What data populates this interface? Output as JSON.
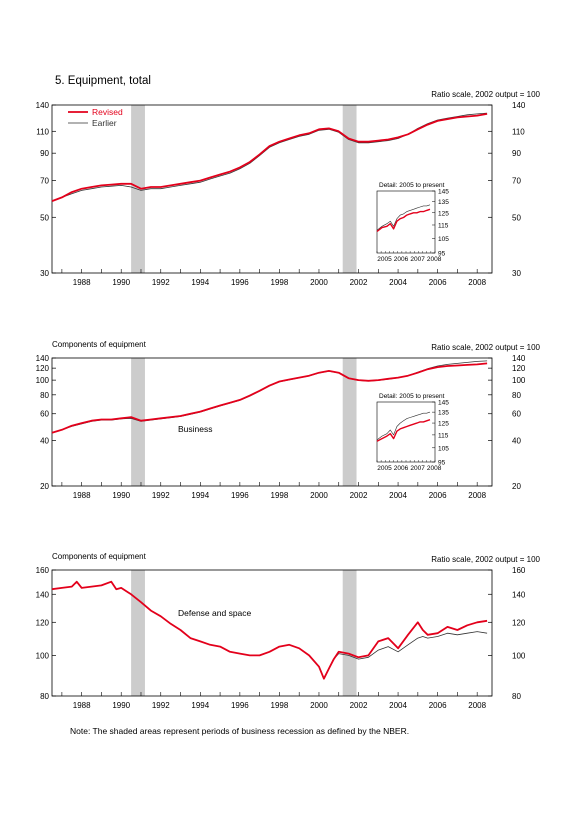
{
  "figure_title": "5. Equipment, total",
  "note": "Note: The shaded areas represent periods of business recession as defined by the NBER.",
  "colors": {
    "revised": "#e3001b",
    "earlier": "#333333",
    "recession": "#cccccc",
    "axis": "#000000"
  },
  "recessions": [
    [
      1990.5,
      1991.2
    ],
    [
      2001.2,
      2001.9
    ]
  ],
  "chart_data": [
    {
      "type": "line",
      "title": "",
      "left_label": "",
      "right_label": "Ratio scale, 2002 output = 100",
      "scale": "log",
      "xlim": [
        1986.5,
        2008.75
      ],
      "ylim": [
        30,
        140
      ],
      "yticks": [
        30,
        50,
        70,
        90,
        110,
        140
      ],
      "xticks": [
        1988,
        1990,
        1992,
        1994,
        1996,
        1998,
        2000,
        2002,
        2004,
        2006,
        2008
      ],
      "legend": {
        "placement": "top-left",
        "entries": [
          "Revised",
          "Earlier"
        ]
      },
      "series": [
        {
          "name": "Revised",
          "style": "revised",
          "x": [
            1986.5,
            1987.0,
            1987.5,
            1988.0,
            1988.5,
            1989.0,
            1989.5,
            1990.0,
            1990.5,
            1991.0,
            1991.5,
            1992.0,
            1992.5,
            1993.0,
            1993.5,
            1994.0,
            1994.5,
            1995.0,
            1995.5,
            1996.0,
            1996.5,
            1997.0,
            1997.5,
            1998.0,
            1998.5,
            1999.0,
            1999.5,
            2000.0,
            2000.5,
            2001.0,
            2001.5,
            2002.0,
            2002.5,
            2003.0,
            2003.5,
            2004.0,
            2004.5,
            2005.0,
            2005.5,
            2006.0,
            2006.5,
            2007.0,
            2007.5,
            2008.0,
            2008.5
          ],
          "y": [
            58,
            60,
            63,
            65,
            66,
            67,
            67.5,
            68,
            68,
            65,
            66,
            66,
            67,
            68,
            69,
            70,
            72,
            74,
            76,
            79,
            83,
            89,
            96,
            100,
            103,
            106,
            108,
            112,
            113,
            110,
            103,
            100,
            100,
            101,
            102,
            104,
            107,
            112,
            117,
            121,
            123,
            125,
            126,
            127,
            129
          ]
        },
        {
          "name": "Earlier",
          "style": "earlier",
          "x": [
            1986.5,
            1987.0,
            1987.5,
            1988.0,
            1988.5,
            1989.0,
            1989.5,
            1990.0,
            1990.5,
            1991.0,
            1991.5,
            1992.0,
            1992.5,
            1993.0,
            1993.5,
            1994.0,
            1994.5,
            1995.0,
            1995.5,
            1996.0,
            1996.5,
            1997.0,
            1997.5,
            1998.0,
            1998.5,
            1999.0,
            1999.5,
            2000.0,
            2000.5,
            2001.0,
            2001.5,
            2002.0,
            2002.5,
            2003.0,
            2003.5,
            2004.0,
            2004.5,
            2005.0,
            2005.5,
            2006.0,
            2006.5,
            2007.0,
            2007.5,
            2008.0,
            2008.5
          ],
          "y": [
            58,
            60,
            62,
            64,
            65,
            66,
            66.5,
            67,
            66,
            64,
            65,
            65,
            66,
            67,
            68,
            69,
            71,
            73,
            75,
            78,
            82,
            88,
            95,
            99,
            102,
            105,
            107,
            111,
            112,
            109,
            102,
            99,
            99,
            100,
            101,
            103,
            107,
            113,
            118,
            122,
            124,
            126,
            128,
            129,
            130
          ]
        }
      ],
      "inset": {
        "title": "Detail: 2005 to present",
        "scale": "log",
        "xlim": [
          2005,
          2008.5
        ],
        "ylim": [
          95,
          145
        ],
        "yticks": [
          95,
          105,
          115,
          125,
          135,
          145
        ],
        "xticks": [
          2005,
          2006,
          2007,
          2008
        ],
        "series": [
          {
            "name": "Revised",
            "style": "revised",
            "x": [
              2005.0,
              2005.3,
              2005.6,
              2005.8,
              2006.0,
              2006.2,
              2006.4,
              2006.6,
              2006.8,
              2007.0,
              2007.2,
              2007.4,
              2007.6,
              2007.8,
              2008.0,
              2008.2
            ],
            "y": [
              110,
              113,
              114,
              116,
              112,
              118,
              120,
              121,
              123,
              124,
              125,
              125,
              126,
              126,
              127,
              128
            ]
          },
          {
            "name": "Earlier",
            "style": "earlier",
            "x": [
              2005.0,
              2005.3,
              2005.6,
              2005.8,
              2006.0,
              2006.2,
              2006.4,
              2006.6,
              2006.8,
              2007.0,
              2007.2,
              2007.4,
              2007.6,
              2007.8,
              2008.0,
              2008.2
            ],
            "y": [
              111,
              114,
              116,
              118,
              114,
              120,
              123,
              124,
              126,
              127,
              128,
              129,
              130,
              131,
              131,
              132
            ]
          }
        ]
      }
    },
    {
      "type": "line",
      "title": "",
      "left_label": "Components of equipment",
      "right_label": "Ratio scale, 2002 output = 100",
      "series_label": "Business",
      "scale": "log",
      "xlim": [
        1986.5,
        2008.75
      ],
      "ylim": [
        20,
        140
      ],
      "yticks": [
        20,
        40,
        60,
        80,
        100,
        120,
        140
      ],
      "xticks": [
        1988,
        1990,
        1992,
        1994,
        1996,
        1998,
        2000,
        2002,
        2004,
        2006,
        2008
      ],
      "series": [
        {
          "name": "Revised",
          "style": "revised",
          "x": [
            1986.5,
            1987.0,
            1987.5,
            1988.0,
            1988.5,
            1989.0,
            1989.5,
            1990.0,
            1990.5,
            1991.0,
            1991.5,
            1992.0,
            1992.5,
            1993.0,
            1993.5,
            1994.0,
            1994.5,
            1995.0,
            1995.5,
            1996.0,
            1996.5,
            1997.0,
            1997.5,
            1998.0,
            1998.5,
            1999.0,
            1999.5,
            2000.0,
            2000.5,
            2001.0,
            2001.5,
            2002.0,
            2002.5,
            2003.0,
            2003.5,
            2004.0,
            2004.5,
            2005.0,
            2005.5,
            2006.0,
            2006.5,
            2007.0,
            2007.5,
            2008.0,
            2008.5
          ],
          "y": [
            45,
            47,
            50,
            52,
            54,
            55,
            55,
            56,
            57,
            54,
            55,
            56,
            57,
            58,
            60,
            62,
            65,
            68,
            71,
            74,
            79,
            85,
            92,
            98,
            101,
            104,
            107,
            112,
            115,
            112,
            103,
            100,
            99,
            100,
            102,
            104,
            107,
            112,
            118,
            122,
            124,
            125,
            126,
            127,
            129
          ]
        },
        {
          "name": "Earlier",
          "style": "earlier",
          "x": [
            1986.5,
            1987.0,
            1987.5,
            1988.0,
            1988.5,
            1989.0,
            1989.5,
            1990.0,
            1990.5,
            1991.0,
            1991.5,
            1992.0,
            1992.5,
            1993.0,
            1993.5,
            1994.0,
            1994.5,
            1995.0,
            1995.5,
            1996.0,
            1996.5,
            1997.0,
            1997.5,
            1998.0,
            1998.5,
            1999.0,
            1999.5,
            2000.0,
            2000.5,
            2001.0,
            2001.5,
            2002.0,
            2002.5,
            2003.0,
            2003.5,
            2004.0,
            2004.5,
            2005.0,
            2005.5,
            2006.0,
            2006.5,
            2007.0,
            2007.5,
            2008.0,
            2008.5
          ],
          "y": [
            45,
            47,
            49.5,
            51.5,
            53.5,
            54.5,
            54.5,
            55.5,
            56,
            53.5,
            54.5,
            55.5,
            56.5,
            57.5,
            59.5,
            61.5,
            64.5,
            67.5,
            70.5,
            73.5,
            78.5,
            84.5,
            91.5,
            97.5,
            100.5,
            103.5,
            106.5,
            111.5,
            114.5,
            111.5,
            102.5,
            99.5,
            98.5,
            99.5,
            101.5,
            103.5,
            107,
            113,
            119,
            124,
            127,
            129,
            131,
            133,
            134
          ]
        }
      ],
      "inset": {
        "title": "Detail: 2005 to present",
        "scale": "log",
        "xlim": [
          2005,
          2008.5
        ],
        "ylim": [
          95,
          145
        ],
        "yticks": [
          95,
          105,
          115,
          125,
          135,
          145
        ],
        "xticks": [
          2005,
          2006,
          2007,
          2008
        ],
        "series": [
          {
            "name": "Revised",
            "style": "revised",
            "x": [
              2005.0,
              2005.3,
              2005.6,
              2005.8,
              2006.0,
              2006.2,
              2006.4,
              2006.6,
              2006.8,
              2007.0,
              2007.2,
              2007.4,
              2007.6,
              2007.8,
              2008.0,
              2008.2
            ],
            "y": [
              110,
              112,
              114,
              116,
              112,
              118,
              120,
              121,
              122,
              123,
              124,
              125,
              126,
              126,
              127,
              128
            ]
          },
          {
            "name": "Earlier",
            "style": "earlier",
            "x": [
              2005.0,
              2005.3,
              2005.6,
              2005.8,
              2006.0,
              2006.2,
              2006.4,
              2006.6,
              2006.8,
              2007.0,
              2007.2,
              2007.4,
              2007.6,
              2007.8,
              2008.0,
              2008.2
            ],
            "y": [
              111,
              114,
              116,
              119,
              115,
              122,
              125,
              127,
              129,
              130,
              131,
              132,
              133,
              134,
              134,
              135
            ]
          }
        ]
      }
    },
    {
      "type": "line",
      "title": "",
      "left_label": "Components of equipment",
      "right_label": "Ratio scale, 2002 output = 100",
      "series_label": "Defense and space",
      "scale": "log",
      "xlim": [
        1986.5,
        2008.75
      ],
      "ylim": [
        80,
        160
      ],
      "yticks": [
        80,
        100,
        120,
        140,
        160
      ],
      "xticks": [
        1988,
        1990,
        1992,
        1994,
        1996,
        1998,
        2000,
        2002,
        2004,
        2006,
        2008
      ],
      "series": [
        {
          "name": "Revised",
          "style": "revised",
          "x": [
            1986.5,
            1987.0,
            1987.5,
            1987.75,
            1988.0,
            1988.5,
            1989.0,
            1989.5,
            1989.75,
            1990.0,
            1990.5,
            1991.0,
            1991.5,
            1992.0,
            1992.5,
            1993.0,
            1993.5,
            1994.0,
            1994.5,
            1995.0,
            1995.5,
            1996.0,
            1996.5,
            1997.0,
            1997.5,
            1998.0,
            1998.5,
            1999.0,
            1999.5,
            2000.0,
            2000.25,
            2000.5,
            2000.75,
            2001.0,
            2001.5,
            2002.0,
            2002.5,
            2003.0,
            2003.5,
            2004.0,
            2004.5,
            2005.0,
            2005.25,
            2005.5,
            2006.0,
            2006.5,
            2007.0,
            2007.5,
            2008.0,
            2008.5
          ],
          "y": [
            144,
            145,
            146,
            150,
            145,
            146,
            147,
            150,
            144,
            145,
            140,
            134,
            128,
            124,
            119,
            115,
            110,
            108,
            106,
            105,
            102,
            101,
            100,
            100,
            102,
            105,
            106,
            104,
            100,
            94,
            88,
            93,
            98,
            102,
            101,
            99,
            100,
            108,
            110,
            104,
            112,
            120,
            115,
            112,
            113,
            117,
            115,
            118,
            120,
            121
          ]
        },
        {
          "name": "Earlier",
          "style": "earlier",
          "x": [
            1986.5,
            1987.0,
            1987.5,
            1987.75,
            1988.0,
            1988.5,
            1989.0,
            1989.5,
            1989.75,
            1990.0,
            1990.5,
            1991.0,
            1991.5,
            1992.0,
            1992.5,
            1993.0,
            1993.5,
            1994.0,
            1994.5,
            1995.0,
            1995.5,
            1996.0,
            1996.5,
            1997.0,
            1997.5,
            1998.0,
            1998.5,
            1999.0,
            1999.5,
            2000.0,
            2000.25,
            2000.5,
            2000.75,
            2001.0,
            2001.5,
            2002.0,
            2002.5,
            2003.0,
            2003.5,
            2004.0,
            2004.5,
            2005.0,
            2005.25,
            2005.5,
            2006.0,
            2006.5,
            2007.0,
            2007.5,
            2008.0,
            2008.5
          ],
          "y": [
            144,
            145,
            146,
            150,
            145,
            146,
            147,
            150,
            144,
            145,
            140,
            134,
            128,
            124,
            119,
            115,
            110,
            108,
            106,
            105,
            102,
            101,
            100,
            100,
            102,
            105,
            106,
            104,
            100,
            94,
            88,
            93,
            98,
            101,
            100,
            98,
            99,
            103,
            105,
            102,
            106,
            110,
            111,
            110,
            111,
            113,
            112,
            113,
            114,
            113
          ]
        }
      ]
    }
  ]
}
